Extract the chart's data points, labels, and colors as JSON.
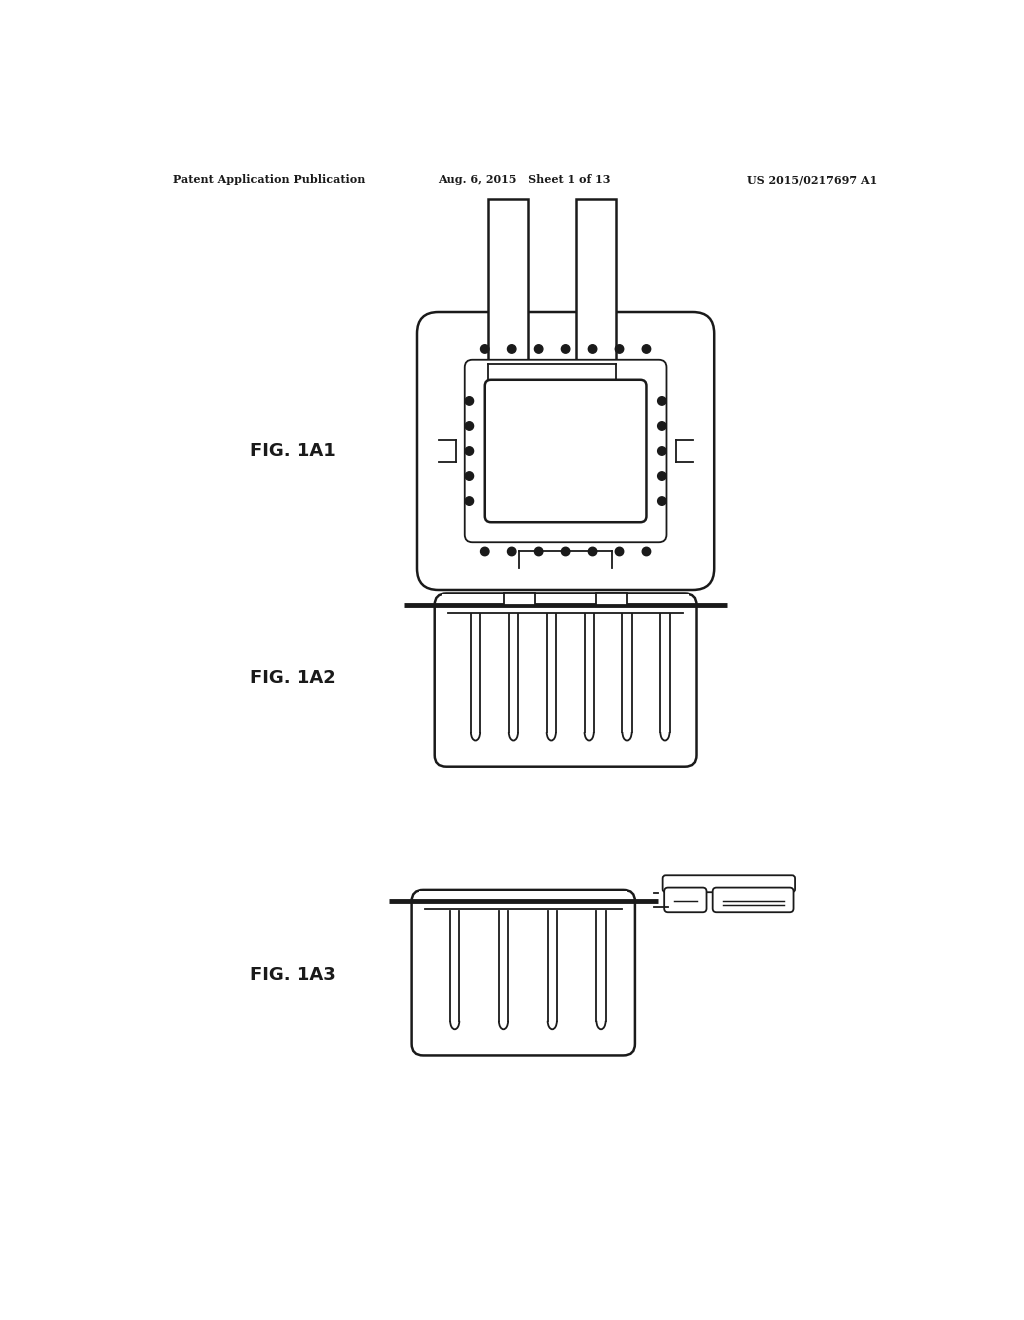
{
  "bg_color": "#ffffff",
  "line_color": "#1a1a1a",
  "header_left": "Patent Application Publication",
  "header_center": "Aug. 6, 2015   Sheet 1 of 13",
  "header_right": "US 2015/0217697 A1",
  "fig1_label": "FIG. 1A1",
  "fig2_label": "FIG. 1A2",
  "fig3_label": "FIG. 1A3"
}
